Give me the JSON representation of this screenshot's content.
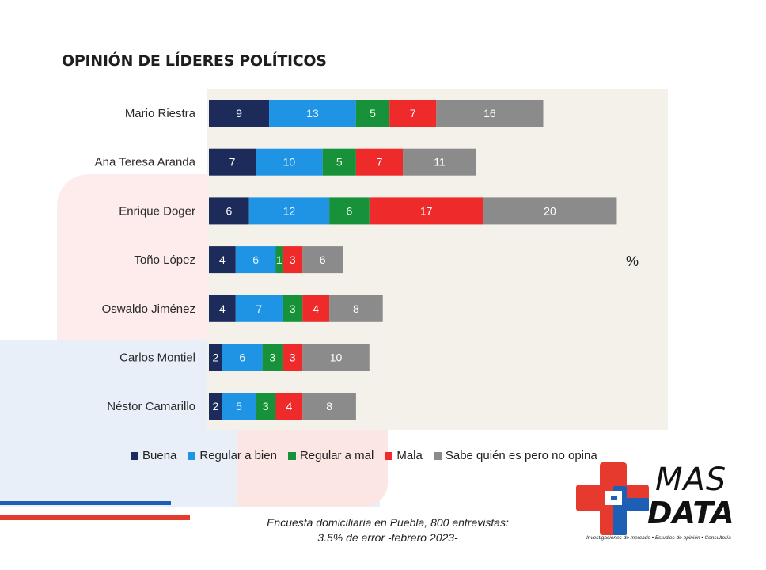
{
  "header": {
    "title": "OPINIÓN DE LÍDERES POLÍTICOS"
  },
  "colors": {
    "buena": "#1c2b5a",
    "regular_bien": "#1f93e4",
    "regular_mal": "#18923a",
    "mala": "#ee2a2a",
    "no_opina": "#8b8b8b",
    "plot_bg": "#f3f1ea"
  },
  "chart_data": {
    "type": "bar",
    "orientation": "horizontal",
    "stacked": true,
    "title": "OPINIÓN DE LÍDERES POLÍTICOS",
    "unit_label": "%",
    "categories": [
      "Mario Riestra",
      "Ana Teresa Aranda",
      "Enrique Doger",
      "Toño López",
      "Oswaldo Jiménez",
      "Carlos Montiel",
      "Néstor Camarillo"
    ],
    "series": [
      {
        "name": "Buena",
        "color": "#1c2b5a",
        "label_color": "#ffffff",
        "values": [
          9,
          7,
          6,
          4,
          4,
          2,
          2
        ]
      },
      {
        "name": "Regular a bien",
        "color": "#1f93e4",
        "label_color": "#e8f3ff",
        "values": [
          13,
          10,
          12,
          6,
          7,
          6,
          5
        ]
      },
      {
        "name": "Regular a mal",
        "color": "#18923a",
        "label_color": "#e9ffe9",
        "values": [
          5,
          5,
          6,
          1,
          3,
          3,
          3
        ]
      },
      {
        "name": "Mala",
        "color": "#ee2a2a",
        "label_color": "#ffffff",
        "values": [
          7,
          7,
          17,
          3,
          4,
          3,
          4
        ]
      },
      {
        "name": "Sabe quién es pero no opina",
        "color": "#8b8b8b",
        "label_color": "#ffffff",
        "values": [
          16,
          11,
          20,
          6,
          8,
          10,
          8
        ]
      }
    ],
    "legend_position": "bottom",
    "grid": false
  },
  "footnote": {
    "line1": "Encuesta domiciliaria en Puebla, 800 entrevistas:",
    "line2": "3.5% de error -febrero 2023-"
  },
  "logo": {
    "line1": "MAS",
    "line2": "DATA",
    "tagline": "Investigaciones de mercado • Estudios de opinión • Consultoría"
  }
}
